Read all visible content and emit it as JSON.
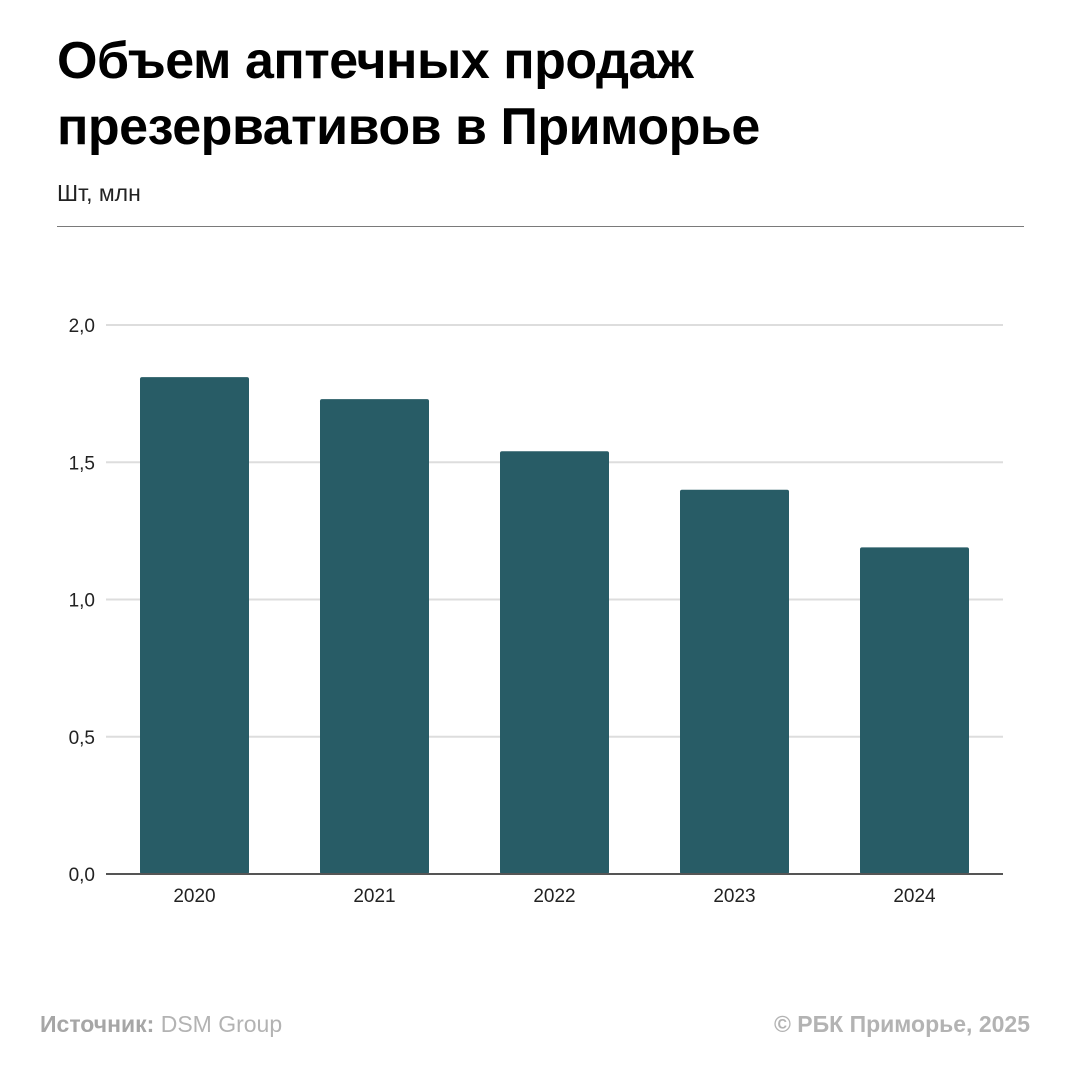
{
  "header": {
    "title": "Объем аптечных продаж\nпрезервативов в Приморье",
    "subtitle": "Шт, млн"
  },
  "footer": {
    "source_label": "Источник:",
    "source_value": "DSM Group",
    "copyright": "© РБК Приморье, 2025"
  },
  "chart_data": {
    "type": "bar",
    "categories": [
      "2020",
      "2021",
      "2022",
      "2023",
      "2024"
    ],
    "values": [
      1.81,
      1.73,
      1.54,
      1.4,
      1.19
    ],
    "ylabel": "",
    "xlabel": "",
    "ylim": [
      0,
      2.0
    ],
    "yticks": [
      0.0,
      0.5,
      1.0,
      1.5,
      2.0
    ],
    "ytick_labels": [
      "0,0",
      "0,5",
      "1,0",
      "1,5",
      "2,0"
    ],
    "grid": true,
    "legend": "none",
    "bar_color": "#285c66",
    "grid_color": "#dddddd",
    "axis_color": "#555555"
  }
}
